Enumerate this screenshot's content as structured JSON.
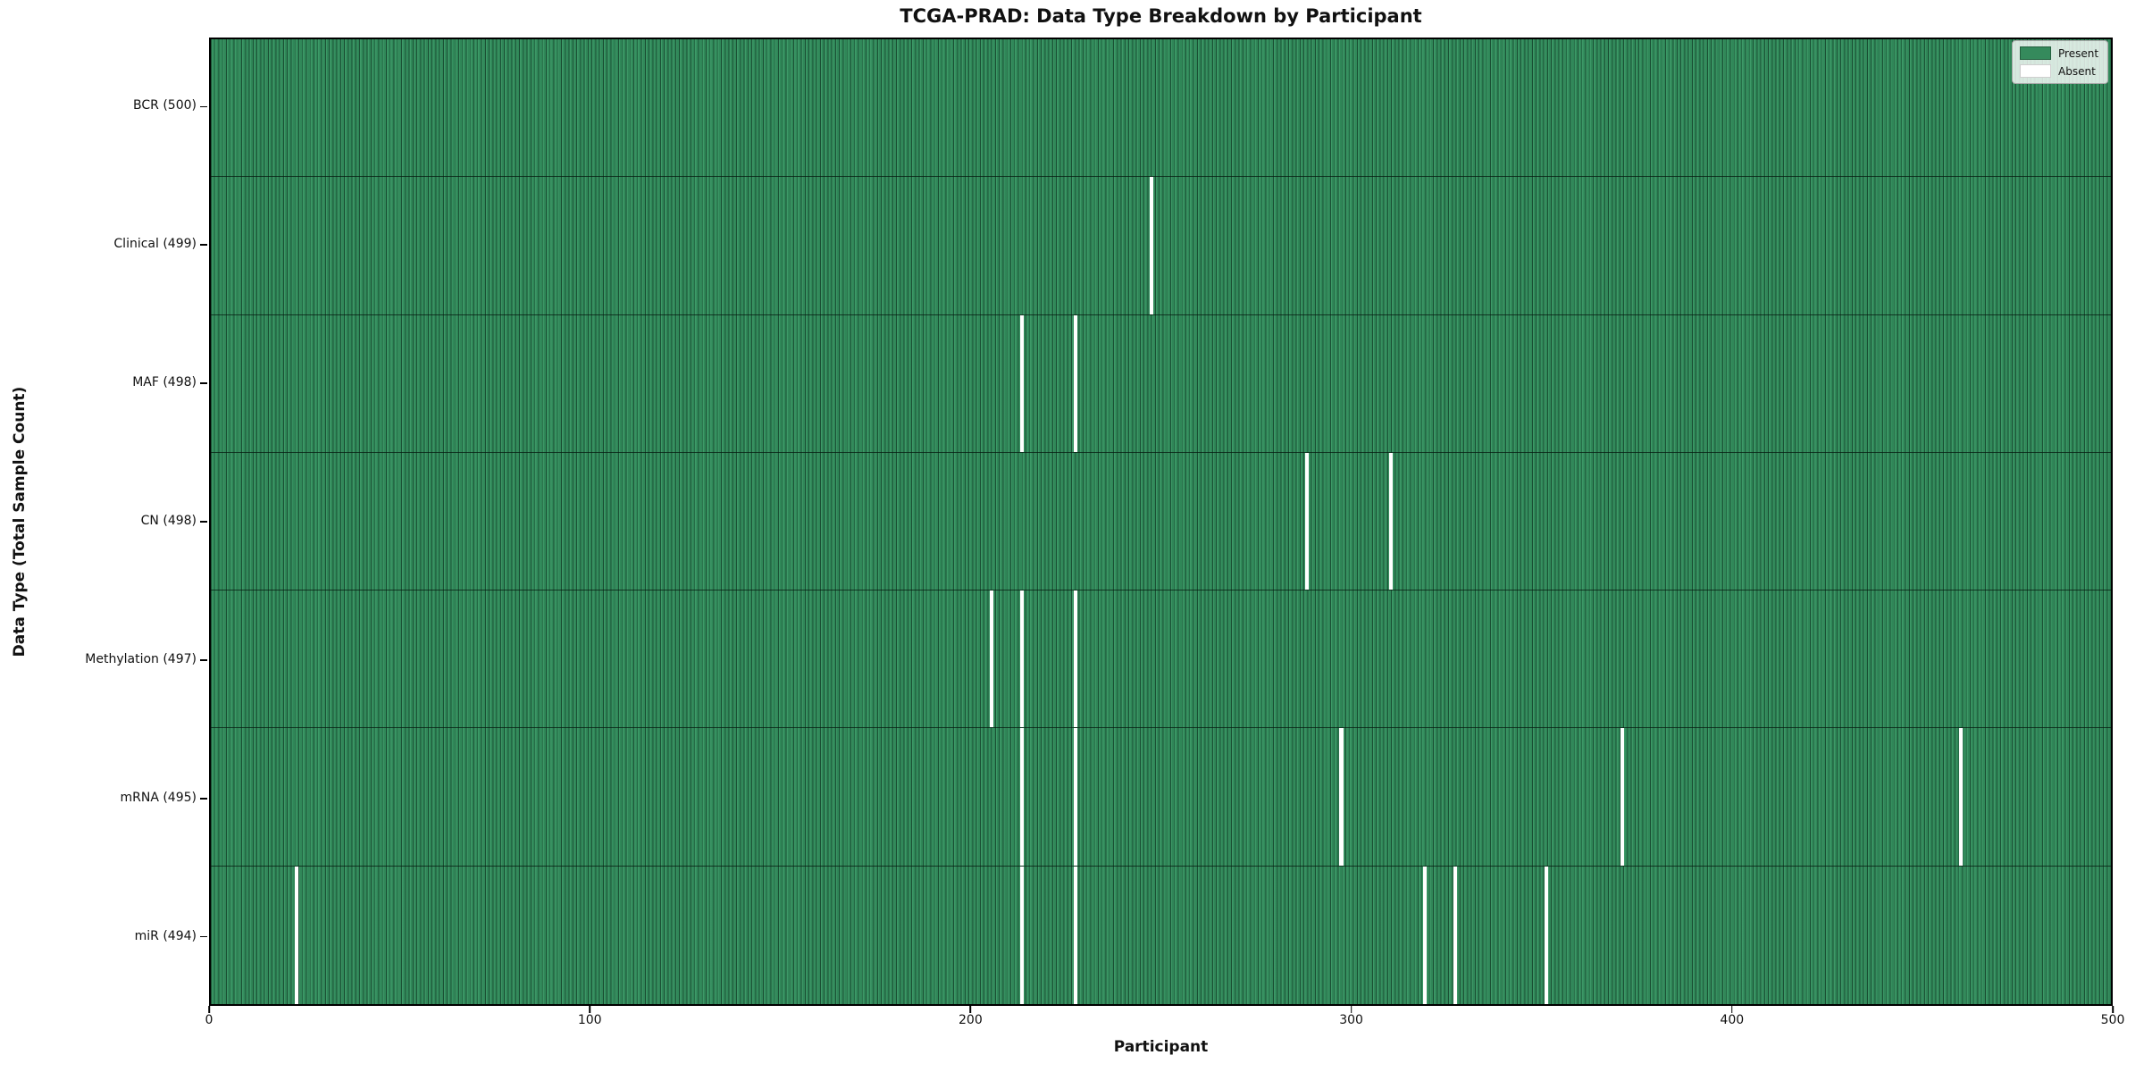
{
  "title": "TCGA-PRAD: Data Type Breakdown by Participant",
  "x_axis": {
    "label": "Participant",
    "tick_labels": [
      "0",
      "100",
      "200",
      "300",
      "400",
      "500"
    ],
    "tick_values": [
      0,
      100,
      200,
      300,
      400,
      500
    ],
    "range": [
      0,
      500
    ]
  },
  "y_axis": {
    "label": "Data Type (Total Sample Count)"
  },
  "legend": {
    "items": [
      {
        "label": "Present",
        "color": "#358a5c"
      },
      {
        "label": "Absent",
        "color": "#ffffff"
      }
    ]
  },
  "colors": {
    "present": "#358a5c",
    "absent": "#ffffff",
    "cell_edge": "rgba(8,40,24,0.6)"
  },
  "chart_data": {
    "type": "heatmap",
    "title": "TCGA-PRAD: Data Type Breakdown by Participant",
    "xlabel": "Participant",
    "ylabel": "Data Type (Total Sample Count)",
    "xlim": [
      0,
      500
    ],
    "n_participants": 500,
    "legend_entries": [
      "Present",
      "Absent"
    ],
    "legend_position": "upper right",
    "rows": [
      {
        "label": "BCR",
        "total": 500,
        "display": "BCR (500)",
        "absent_participants": []
      },
      {
        "label": "Clinical",
        "total": 499,
        "display": "Clinical (499)",
        "absent_participants": [
          247
        ]
      },
      {
        "label": "MAF",
        "total": 498,
        "display": "MAF (498)",
        "absent_participants": [
          213,
          227
        ]
      },
      {
        "label": "CN",
        "total": 498,
        "display": "CN (498)",
        "absent_participants": [
          288,
          310
        ]
      },
      {
        "label": "Methylation",
        "total": 497,
        "display": "Methylation (497)",
        "absent_participants": [
          205,
          213,
          227
        ]
      },
      {
        "label": "mRNA",
        "total": 495,
        "display": "mRNA (495)",
        "absent_participants": [
          213,
          227,
          297,
          371,
          460
        ]
      },
      {
        "label": "miR",
        "total": 494,
        "display": "miR (494)",
        "absent_participants": [
          22,
          213,
          227,
          319,
          327,
          351
        ]
      }
    ]
  }
}
